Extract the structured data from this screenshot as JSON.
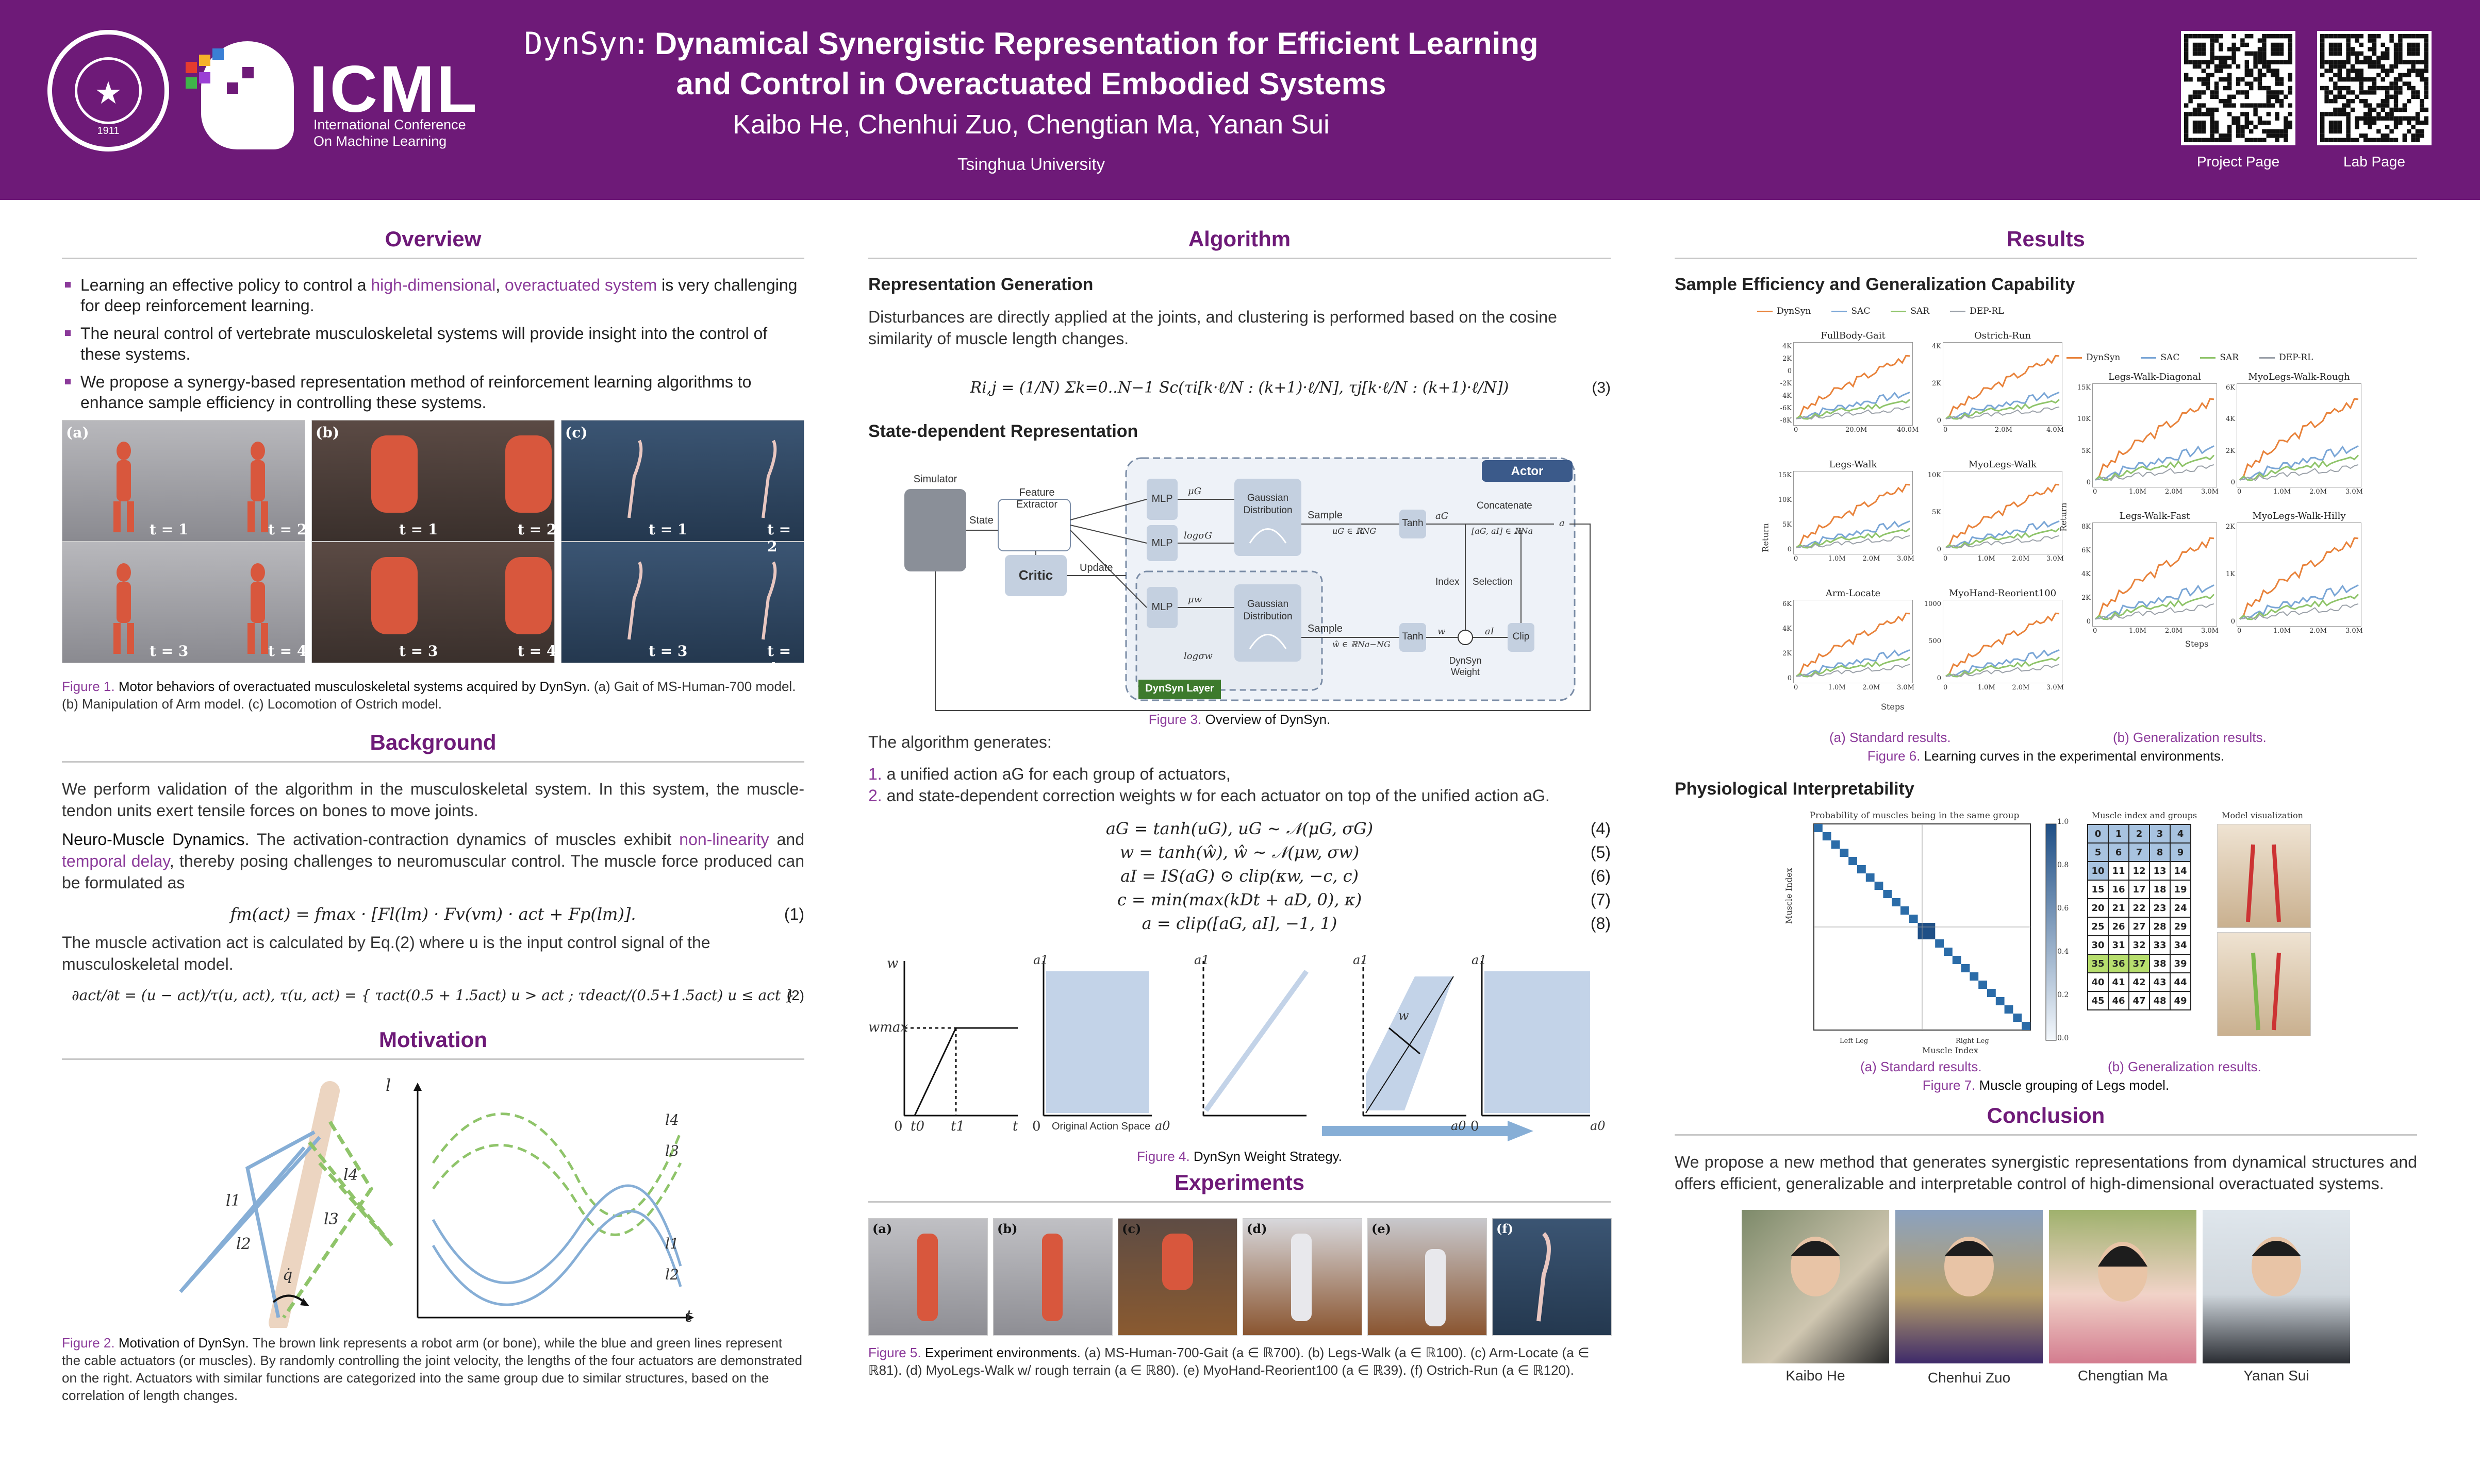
{
  "header": {
    "title_mono": "DynSyn",
    "title_rest": ": Dynamical Synergistic Representation for Efficient Learning and Control in Overactuated Embodied Systems",
    "authors": "Kaibo He, Chenhui Zuo, Chengtian Ma, Yanan Sui",
    "affiliation": "Tsinghua University",
    "conf_name": "ICML",
    "conf_sub1": "International Conference",
    "conf_sub2": "On Machine Learning",
    "seal_year": "1911",
    "qr": [
      {
        "label": "Project Page"
      },
      {
        "label": "Lab Page"
      }
    ]
  },
  "overview": {
    "title": "Overview",
    "b1_pre": "Learning an effective policy to control a ",
    "b1_hl1": "high-dimensional",
    "b1_mid": ", ",
    "b1_hl2": "overactuated system",
    "b1_post": " is very challenging for deep reinforcement learning.",
    "b2": "The neural control of vertebrate musculoskeletal systems will provide insight into the control of these systems.",
    "b3": "We propose a synergy-based representation method of reinforcement learning algorithms to enhance sample efficiency in controlling these systems.",
    "panels": [
      "(a)",
      "(b)",
      "(c)"
    ],
    "tlabels": [
      "t = 1",
      "t = 2",
      "t = 3",
      "t = 4"
    ],
    "fig_label": "Figure 1.",
    "fig_bold": "Motor behaviors of overactuated musculoskeletal systems acquired by DynSyn.",
    "fig_rest": " (a) Gait of MS-Human-700 model. (b) Manipulation of Arm model. (c) Locomotion of Ostrich model."
  },
  "background": {
    "title": "Background",
    "p1": "We perform validation of the algorithm in the musculoskeletal system.  In this system, the muscle-tendon units exert tensile forces on bones to move joints.",
    "p2_lead": "Neuro-Muscle Dynamics.",
    "p2_a": " The activation-contraction dynamics of muscles exhibit ",
    "p2_hl1": "non-linearity",
    "p2_b": " and ",
    "p2_hl2": "temporal delay",
    "p2_c": ", thereby posing challenges to neuromuscular control.  The muscle force produced can be formulated as",
    "eq1": "fm(act) = fmax · [Fl(lm) · Fv(vm) · act + Fp(lm)].",
    "eq1_num": "(1)",
    "p3": "The muscle activation act is calculated by Eq.(2) where u is the input control signal of the musculoskeletal model.",
    "eq2": "∂act/∂t = (u − act)/τ(u, act),  τ(u, act) = { τact(0.5 + 1.5act)  u > act ;  τdeact/(0.5+1.5act)  u ≤ act }",
    "eq2_num": "(2)"
  },
  "motivation": {
    "title": "Motivation",
    "labels": [
      "l1",
      "l2",
      "l3",
      "l4",
      "q̇"
    ],
    "axis_l": "l",
    "axis_t": "t",
    "curve_labels": [
      "l4",
      "l3",
      "l1",
      "l2"
    ],
    "fig_label": "Figure 2.",
    "fig_bold": "Motivation of DynSyn.",
    "fig_rest": " The brown link represents a robot arm (or bone), while the blue and green lines represent the cable actuators (or muscles).  By randomly controlling the joint velocity, the lengths of the four actuators are demonstrated on the right. Actuators with similar functions are categorized into the same group due to similar structures, based on the correlation of length changes."
  },
  "algorithm": {
    "title": "Algorithm",
    "rep_title": "Representation Generation",
    "rep_text": "Disturbances are directly applied at the joints, and clustering is performed based on the cosine similarity of muscle length changes.",
    "eq3": "Ri,j = (1/N) Σk=0..N−1 Sc(τi[k·ℓ/N : (k+1)·ℓ/N], τj[k·ℓ/N : (k+1)·ℓ/N])",
    "eq3_num": "(3)",
    "state_title": "State-dependent Representation",
    "diagram": {
      "actor": "Actor",
      "simulator": "Simulator",
      "state": "State",
      "feature": "Feature Extractor",
      "critic": "Critic",
      "update": "Update",
      "mlp": "MLP",
      "gauss1": "Gaussian",
      "gauss2": "Distribution",
      "sample": "Sample",
      "tanh": "Tanh",
      "concat": "Concatenate",
      "index": "Index",
      "selection": "Selection",
      "clip": "Clip",
      "weight1": "DynSyn",
      "weight2": "Weight",
      "layer": "DynSyn Layer",
      "muG": "μG",
      "logsG": "logσG",
      "muw": "μw",
      "logsw": "logσw",
      "aG": "uG ∈ ℝNG",
      "wlab": "ŵ ∈ ℝNa−NG",
      "concat_sub": "[aG, aI] ∈ ℝNa",
      "a": "a",
      "aI": "aI",
      "w": "w",
      "ag": "aG"
    },
    "fig3_label": "Figure 3.",
    "fig3_bold": "Overview of DynSyn.",
    "gen_text": "The algorithm generates:",
    "list1": "a unified action aG for each group of actuators,",
    "list2": "and state-dependent correction weights w for each actuator on top of the unified action aG.",
    "eqs": [
      {
        "text": "aG = tanh(uG), uG ∼ 𝒩(μG, σG)",
        "num": "(4)"
      },
      {
        "text": "w = tanh(ŵ), ŵ ∼ 𝒩(μw, σw)",
        "num": "(5)"
      },
      {
        "text": "aI = IS(aG) ⊙ clip(κw, −c, c)",
        "num": "(6)"
      },
      {
        "text": "c = min(max(kDt + aD, 0), κ)",
        "num": "(7)"
      },
      {
        "text": "a = clip([aG, aI], −1, 1)",
        "num": "(8)"
      }
    ],
    "fig4": {
      "w": "w",
      "wmax": "wmax",
      "zero": "0",
      "t0": "t0",
      "t1": "t1",
      "t": "t",
      "a1": "a1",
      "a0": "a0",
      "orig": "Original Action Space"
    },
    "fig4_label": "Figure 4.",
    "fig4_bold": "DynSyn Weight Strategy."
  },
  "experiments": {
    "title": "Experiments",
    "panels": [
      "(a)",
      "(b)",
      "(c)",
      "(d)",
      "(e)",
      "(f)"
    ],
    "fig_label": "Figure 5.",
    "fig_bold": "Experiment environments.",
    "fig_rest": " (a) MS-Human-700-Gait (a ∈ ℝ700). (b) Legs-Walk (a ∈ ℝ100). (c) Arm-Locate (a ∈ ℝ81). (d) MyoLegs-Walk w/ rough terrain (a ∈ ℝ80). (e) MyoHand-Reorient100 (a ∈ ℝ39). (f) Ostrich-Run (a ∈ ℝ120)."
  },
  "results": {
    "title": "Results",
    "sample_title": "Sample Efficiency and Generalization Capability",
    "legend": [
      "DynSyn",
      "SAC",
      "SAR",
      "DEP-RL"
    ],
    "colors": {
      "dynsyn": "#e8823a",
      "sac": "#7aa6d6",
      "sar": "#8fc46a",
      "deprl": "#9aa0a8"
    },
    "std_titles": [
      "FullBody-Gait",
      "Ostrich-Run",
      "Legs-Walk",
      "MyoLegs-Walk",
      "Arm-Locate",
      "MyoHand-Reorient100"
    ],
    "gen_titles": [
      "Legs-Walk-Diagonal",
      "MyoLegs-Walk-Rough",
      "Legs-Walk-Fast",
      "MyoLegs-Walk-Hilly"
    ],
    "ylabel": "Return",
    "xlabel": "Steps",
    "std_xticks": [
      [
        "0",
        "20.0M",
        "40.0M"
      ],
      [
        "0",
        "2.0M",
        "4.0M"
      ],
      [
        "0",
        "1.0M",
        "2.0M",
        "3.0M"
      ],
      [
        "0",
        "1.0M",
        "2.0M",
        "3.0M"
      ],
      [
        "0",
        "1.0M",
        "2.0M",
        "3.0M"
      ],
      [
        "0",
        "1.0M",
        "2.0M",
        "3.0M"
      ]
    ],
    "std_yticks": [
      [
        "4K",
        "2K",
        "0",
        "-2K",
        "-4K",
        "-6K",
        "-8K"
      ],
      [
        "4K",
        "2K",
        "0"
      ],
      [
        "15K",
        "10K",
        "5K",
        "0"
      ],
      [
        "10K",
        "5K",
        "0"
      ],
      [
        "6K",
        "4K",
        "2K",
        "0"
      ],
      [
        "1000",
        "500",
        "0"
      ]
    ],
    "gen_xticks": [
      "0",
      "1.0M",
      "2.0M",
      "3.0M"
    ],
    "gen_yticks": [
      [
        "15K",
        "10K",
        "5K",
        "0"
      ],
      [
        "6K",
        "4K",
        "2K",
        "0"
      ],
      [
        "8K",
        "6K",
        "4K",
        "2K",
        "0"
      ],
      [
        "2K",
        "1K",
        "0"
      ]
    ],
    "sub_a": "(a) Standard results.",
    "sub_b": "(b) Generalization results.",
    "fig6_label": "Figure 6.",
    "fig6_bold": "Learning curves in the experimental environments.",
    "phys_title": "Physiological Interpretability",
    "heat_title": "Probability of muscles being in the same group",
    "heat_xlabel": "Muscle Index",
    "heat_ylabel": "Muscle Index",
    "heat_xticks": [
      "Left Leg",
      "Right Leg"
    ],
    "cbar": [
      "1.0",
      "0.8",
      "0.6",
      "0.4",
      "0.2",
      "0.0"
    ],
    "groups_title": "Muscle index and groups",
    "model_title": "Model visualization",
    "grid": [
      [
        0,
        1,
        2,
        3,
        4
      ],
      [
        5,
        6,
        7,
        8,
        9
      ],
      [
        10,
        11,
        12,
        13,
        14
      ],
      [
        15,
        16,
        17,
        18,
        19
      ],
      [
        20,
        21,
        22,
        23,
        24
      ],
      [
        25,
        26,
        27,
        28,
        29
      ],
      [
        30,
        31,
        32,
        33,
        34
      ],
      [
        35,
        36,
        37,
        38,
        39
      ],
      [
        40,
        41,
        42,
        43,
        44
      ],
      [
        45,
        46,
        47,
        48,
        49
      ]
    ],
    "sub7a": "(a) Standard results.",
    "sub7b": "(b) Generalization results.",
    "fig7_label": "Figure 7.",
    "fig7_bold": "Muscle grouping of Legs model.",
    "concl_title": "Conclusion",
    "concl_text": "We propose a new method that generates synergistic representations from dynamical structures and offers efficient, generalizable and interpretable control of high-dimensional overactuated systems.",
    "people": [
      "Kaibo He",
      "Chenhui Zuo",
      "Chengtian Ma",
      "Yanan Sui"
    ]
  }
}
